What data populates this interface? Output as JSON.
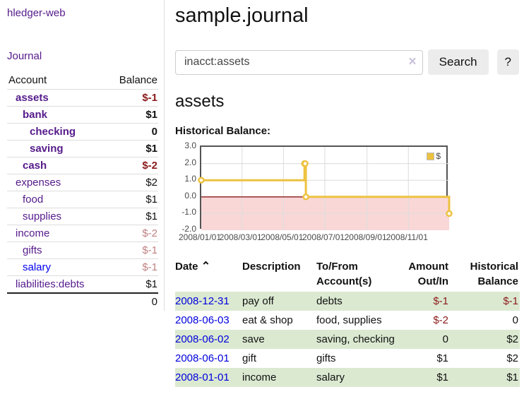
{
  "colors": {
    "purple_link": "#551a8b",
    "blue_link": "#0000dd",
    "negative_strong": "#8b1a1a",
    "negative_muted": "#c08181",
    "row_stripe_green": "#dbe9d1",
    "chart_gold": "#edc240"
  },
  "sidebar": {
    "brand": "hledger-web",
    "journal_link": "Journal",
    "accounts": {
      "headers": {
        "account": "Account",
        "balance": "Balance"
      },
      "rows": [
        {
          "name": "assets",
          "indent": 1,
          "bold": true,
          "balance": "$-1",
          "neg": "strong"
        },
        {
          "name": "bank",
          "indent": 2,
          "bold": true,
          "balance": "$1"
        },
        {
          "name": "checking",
          "indent": 3,
          "bold": true,
          "balance": "0"
        },
        {
          "name": "saving",
          "indent": 3,
          "bold": true,
          "balance": "$1"
        },
        {
          "name": "cash",
          "indent": 2,
          "bold": true,
          "balance": "$-2",
          "neg": "strong"
        },
        {
          "name": "expenses",
          "indent": 1,
          "bold": false,
          "balance": "$2"
        },
        {
          "name": "food",
          "indent": 2,
          "bold": false,
          "balance": "$1"
        },
        {
          "name": "supplies",
          "indent": 2,
          "bold": false,
          "balance": "$1"
        },
        {
          "name": "income",
          "indent": 1,
          "bold": false,
          "balance": "$-2",
          "neg": "muted"
        },
        {
          "name": "gifts",
          "indent": 2,
          "bold": false,
          "balance": "$-1",
          "neg": "muted"
        },
        {
          "name": "salary",
          "indent": 2,
          "bold": false,
          "balance": "$-1",
          "neg": "muted",
          "unvisited": true
        },
        {
          "name": "liabilities:debts",
          "indent": 1,
          "bold": false,
          "balance": "$1"
        }
      ],
      "total": "0"
    }
  },
  "header": {
    "title": "sample.journal"
  },
  "search": {
    "value": "inacct:assets",
    "clear_icon": "×",
    "button_label": "Search",
    "help_label": "?"
  },
  "account_page": {
    "title": "assets",
    "chart_label": "Historical Balance:"
  },
  "chart_data": {
    "type": "line",
    "title": "Historical Balance",
    "steps": true,
    "series": [
      {
        "name": "$",
        "color": "#edc240",
        "points": [
          [
            "2008-01-01",
            1
          ],
          [
            "2008-06-01",
            2
          ],
          [
            "2008-06-02",
            2
          ],
          [
            "2008-06-03",
            0
          ],
          [
            "2008-12-31",
            -1
          ]
        ]
      }
    ],
    "xlim": [
      "2008-01-01",
      "2008-12-31"
    ],
    "ylim": [
      -2,
      3
    ],
    "x_ticks": [
      "2008/01/01",
      "2008/03/01",
      "2008/05/01",
      "2008/07/01",
      "2008/09/01",
      "2008/11/01"
    ],
    "y_ticks": [
      "3.0",
      "2.0",
      "1.0",
      "0.0",
      "-1.0",
      "-2.0"
    ],
    "grid": true,
    "grid_color": "#dcdcdc",
    "negative_region_color": "#f9d7d7",
    "zero_line_color": "#8b1a1a",
    "border_color": "#545454",
    "legend": {
      "label": "$",
      "position": "top-right"
    }
  },
  "register": {
    "columns": [
      {
        "label": "Date",
        "sort_icon": "⌃",
        "align": "left"
      },
      {
        "label": "Description",
        "align": "left"
      },
      {
        "label": "To/From Account(s)",
        "align": "left"
      },
      {
        "label": "Amount Out/In",
        "align": "right"
      },
      {
        "label": "Historical Balance",
        "align": "right"
      }
    ],
    "rows": [
      {
        "date": "2008-12-31",
        "description": "pay off",
        "accounts": "debts",
        "amount": "$-1",
        "amount_neg": true,
        "balance": "$-1",
        "balance_neg": true,
        "stripe": true
      },
      {
        "date": "2008-06-03",
        "description": "eat & shop",
        "accounts": "food, supplies",
        "amount": "$-2",
        "amount_neg": true,
        "balance": "0",
        "balance_neg": false,
        "stripe": false
      },
      {
        "date": "2008-06-02",
        "description": "save",
        "accounts": "saving, checking",
        "amount": "0",
        "amount_neg": false,
        "balance": "$2",
        "balance_neg": false,
        "stripe": true
      },
      {
        "date": "2008-06-01",
        "description": "gift",
        "accounts": "gifts",
        "amount": "$1",
        "amount_neg": false,
        "balance": "$2",
        "balance_neg": false,
        "stripe": false
      },
      {
        "date": "2008-01-01",
        "description": "income",
        "accounts": "salary",
        "amount": "$1",
        "amount_neg": false,
        "balance": "$1",
        "balance_neg": false,
        "stripe": true
      }
    ]
  }
}
